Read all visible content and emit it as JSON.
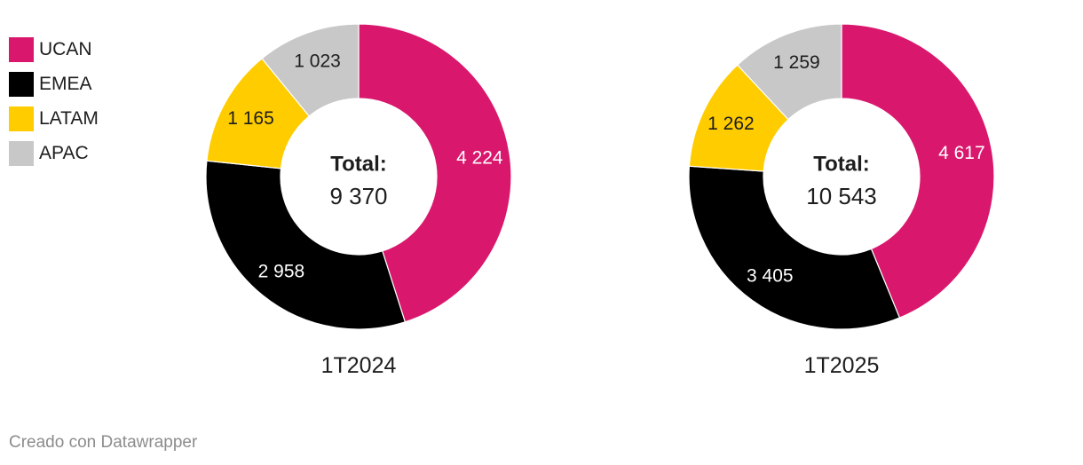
{
  "legend": [
    {
      "label": "UCAN",
      "color": "#d9176d"
    },
    {
      "label": "EMEA",
      "color": "#000000"
    },
    {
      "label": "LATAM",
      "color": "#ffcc00"
    },
    {
      "label": "APAC",
      "color": "#c8c8c8"
    }
  ],
  "chart_data": [
    {
      "type": "pie",
      "subtype": "donut",
      "title": "1T2024",
      "center_label": "Total:",
      "center_value": "9 370",
      "total": 9370,
      "slices": [
        {
          "name": "UCAN",
          "value": 4224,
          "label": "4 224",
          "color": "#d9176d",
          "label_color": "#ffffff"
        },
        {
          "name": "EMEA",
          "value": 2958,
          "label": "2 958",
          "color": "#000000",
          "label_color": "#ffffff"
        },
        {
          "name": "LATAM",
          "value": 1165,
          "label": "1 165",
          "color": "#ffcc00",
          "label_color": "#1d1d1d"
        },
        {
          "name": "APAC",
          "value": 1023,
          "label": "1 023",
          "color": "#c8c8c8",
          "label_color": "#1d1d1d"
        }
      ]
    },
    {
      "type": "pie",
      "subtype": "donut",
      "title": "1T2025",
      "center_label": "Total:",
      "center_value": "10 543",
      "total": 10543,
      "slices": [
        {
          "name": "UCAN",
          "value": 4617,
          "label": "4 617",
          "color": "#d9176d",
          "label_color": "#ffffff"
        },
        {
          "name": "EMEA",
          "value": 3405,
          "label": "3 405",
          "color": "#000000",
          "label_color": "#ffffff"
        },
        {
          "name": "LATAM",
          "value": 1262,
          "label": "1 262",
          "color": "#ffcc00",
          "label_color": "#1d1d1d"
        },
        {
          "name": "APAC",
          "value": 1259,
          "label": "1 259",
          "color": "#c8c8c8",
          "label_color": "#1d1d1d"
        }
      ]
    }
  ],
  "footer": "Creado con Datawrapper"
}
